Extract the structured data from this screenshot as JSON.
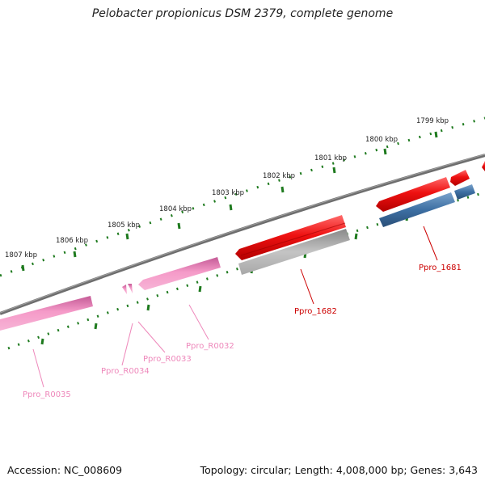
{
  "title": "Pelobacter propionicus DSM 2379, complete genome",
  "footer": {
    "accession": "Accession: NC_008609",
    "summary": "Topology: circular; Length: 4,008,000 bp; Genes: 3,643"
  },
  "ruler_labels": [
    "1799 kbp",
    "1800 kbp",
    "1801 kbp",
    "1802 kbp",
    "1803 kbp",
    "1804 kbp",
    "1805 kbp",
    "1806 kbp",
    "1807 kbp"
  ],
  "gene_labels": [
    "Ppro_1681",
    "Ppro_1682",
    "Ppro_R0032",
    "Ppro_R0033",
    "Ppro_R0034",
    "Ppro_R0035"
  ],
  "colors": {
    "backbone": "#7a7a7a",
    "tick": "#1e7a1e",
    "cds": "#ee1111",
    "gene": "#3d6fa3",
    "rrna": "#aaaaaa",
    "trna": "#f59ac8",
    "cds_label": "#cc0000",
    "rna_label": "#ee88bb"
  }
}
